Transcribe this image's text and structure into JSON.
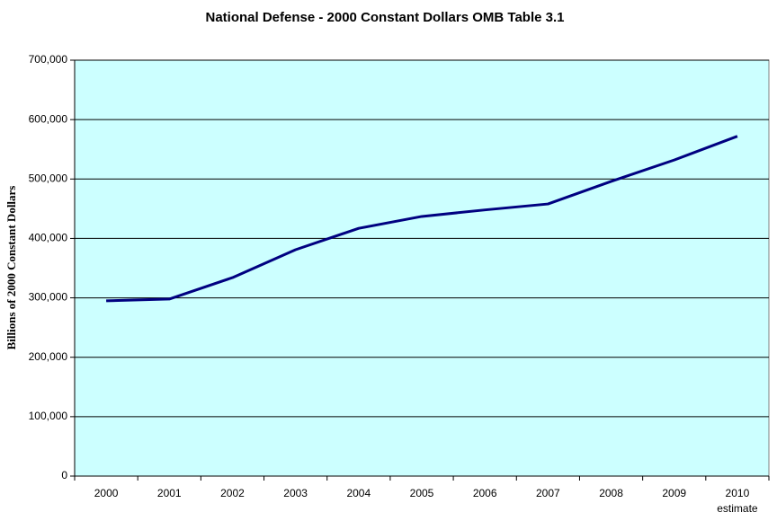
{
  "chart_data": {
    "type": "line",
    "title": "National Defense - 2000 Constant Dollars OMB Table 3.1",
    "y_label": "Billions of 2000 Constant Dollars",
    "annotation": "estimate",
    "categories": [
      "2000",
      "2001",
      "2002",
      "2003",
      "2004",
      "2005",
      "2006",
      "2007",
      "2008",
      "2009",
      "2010"
    ],
    "series": [
      {
        "name": "National Defense",
        "color": "#000080",
        "values": [
          295000,
          298000,
          334000,
          381000,
          417000,
          437000,
          448000,
          458000,
          496000,
          532000,
          572000
        ]
      }
    ],
    "ylim": [
      0,
      700000
    ],
    "yticks": [
      0,
      {
        "value": 100000,
        "label": "100,000"
      },
      {
        "value": 200000,
        "label": "200,000"
      },
      {
        "value": 300000,
        "label": "300,000"
      },
      {
        "value": 400000,
        "label": "400,000"
      },
      {
        "value": 500000,
        "label": "500,000"
      },
      {
        "value": 600000,
        "label": "600,000"
      },
      {
        "value": 700000,
        "label": "700,000"
      }
    ],
    "grid": true,
    "plot_background": "#ccffff"
  }
}
